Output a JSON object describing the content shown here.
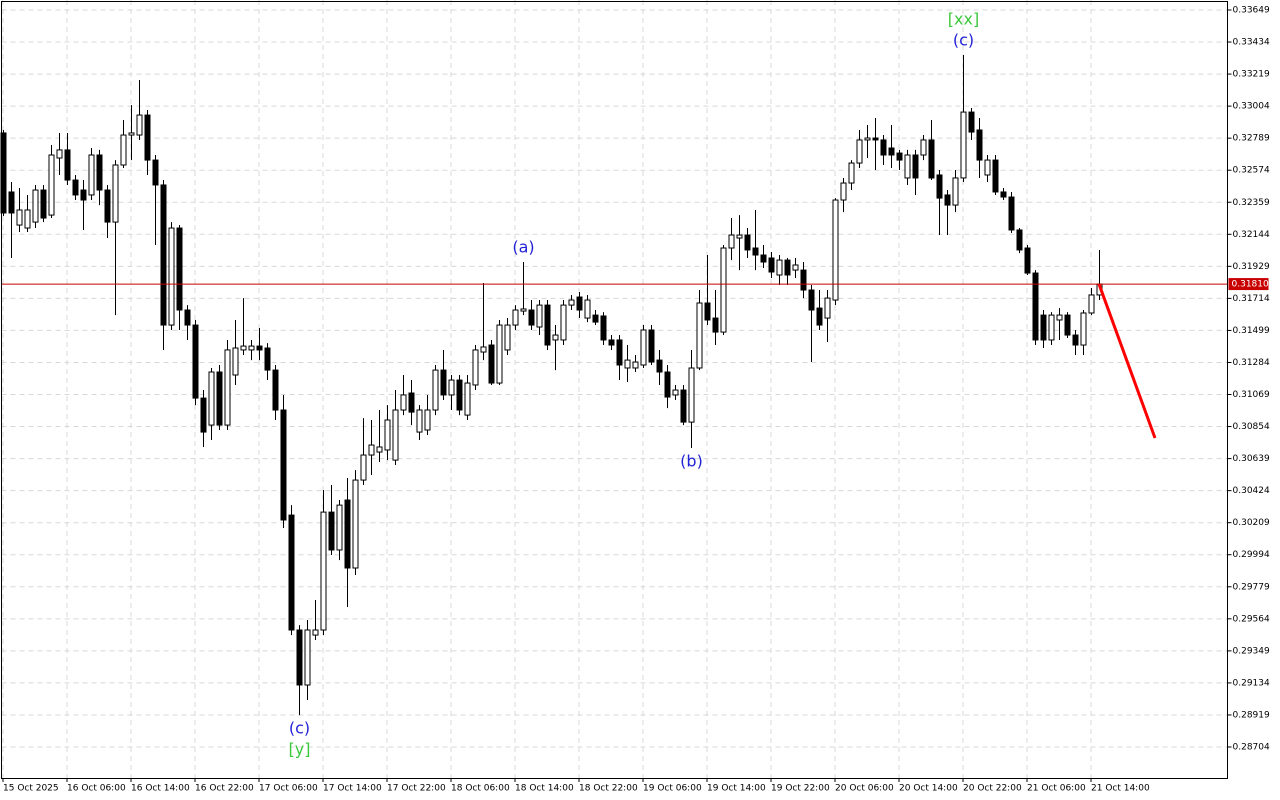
{
  "chart_data": {
    "type": "candlestick",
    "categories": [
      "15 Oct 2025",
      null,
      null,
      null,
      null,
      null,
      null,
      null,
      "16 Oct 06:00",
      null,
      null,
      null,
      null,
      null,
      null,
      null,
      "16 Oct 14:00",
      null,
      null,
      null,
      null,
      null,
      null,
      null,
      "16 Oct 22:00",
      null,
      null,
      null,
      null,
      null,
      null,
      null,
      "17 Oct 06:00",
      null,
      null,
      null,
      null,
      null,
      null,
      null,
      "17 Oct 14:00",
      null,
      null,
      null,
      null,
      null,
      null,
      null,
      "17 Oct 22:00",
      null,
      null,
      null,
      null,
      null,
      null,
      null,
      "18 Oct 06:00",
      null,
      null,
      null,
      null,
      null,
      null,
      null,
      "18 Oct 14:00",
      null,
      null,
      null,
      null,
      null,
      null,
      null,
      "18 Oct 22:00",
      null,
      null,
      null,
      null,
      null,
      null,
      null,
      "19 Oct 06:00",
      null,
      null,
      null,
      null,
      null,
      null,
      null,
      "19 Oct 14:00",
      null,
      null,
      null,
      null,
      null,
      null,
      null,
      "19 Oct 22:00",
      null,
      null,
      null,
      null,
      null,
      null,
      null,
      "20 Oct 06:00",
      null,
      null,
      null,
      null,
      null,
      null,
      null,
      "20 Oct 14:00",
      null,
      null,
      null,
      null,
      null,
      null,
      null,
      "20 Oct 22:00",
      null,
      null,
      null,
      null,
      null,
      null,
      null,
      "21 Oct 06:00",
      null,
      null,
      null,
      null,
      null,
      null,
      null,
      "21 Oct 14:00",
      null,
      null,
      null,
      null,
      null,
      null,
      null,
      null
    ],
    "open": [
      0.32824,
      0.32428,
      0.32206,
      0.32186,
      0.32226,
      0.32441,
      0.32273,
      0.32656,
      0.3271,
      0.32508,
      0.32441,
      0.32408,
      0.32676,
      0.32441,
      0.32226,
      0.32609,
      0.3281,
      0.3281,
      0.32944,
      0.32642,
      0.32475,
      0.31535,
      0.32186,
      0.31636,
      0.31535,
      0.31045,
      0.30864,
      0.3122,
      0.30864,
      0.312,
      0.31368,
      0.31368,
      0.31394,
      0.31381,
      0.31233,
      0.30965,
      0.3026,
      0.29489,
      0.2912,
      0.29455,
      0.29489,
      0.3028,
      0.30026,
      0.30361,
      0.29905,
      0.30495,
      0.30663,
      0.30683,
      0.30697,
      0.30629,
      0.30965,
      0.31079,
      0.30817,
      0.30831,
      0.30965,
      0.31233,
      0.31066,
      0.31166,
      0.30931,
      0.31133,
      0.31354,
      0.31401,
      0.31146,
      0.31368,
      0.31535,
      0.31629,
      0.31636,
      0.31522,
      0.31669,
      0.31435,
      0.31435,
      0.31669,
      0.31723,
      0.31582,
      0.31602,
      0.31596,
      0.31435,
      0.31435,
      0.31247,
      0.31247,
      0.31267,
      0.31502,
      0.313,
      0.3122,
      0.31066,
      0.31099,
      0.30884,
      0.31247,
      0.31683,
      0.31582,
      0.31488,
      0.32052,
      0.32119,
      0.32139,
      0.32052,
      0.32005,
      0.31985,
      0.31871,
      0.31971,
      0.31904,
      0.31904,
      0.3177,
      0.31649,
      0.31582,
      0.31703,
      0.32374,
      0.32488,
      0.32622,
      0.32777,
      0.3279,
      0.32777,
      0.32723,
      0.32689,
      0.32522,
      0.32676,
      0.32676,
      0.32777,
      0.32542,
      0.32408,
      0.3234,
      0.32522,
      0.32964,
      0.32844,
      0.32542,
      0.32642,
      0.32428,
      0.32394,
      0.32173,
      0.32052,
      0.31884,
      0.31602,
      0.31435,
      0.31569,
      0.31602,
      0.31468,
      0.31401,
      0.31616,
      0.31737,
      null,
      null,
      null,
      null,
      null,
      null,
      null
    ],
    "high": [
      0.32844,
      0.32495,
      0.32455,
      0.32408,
      0.32475,
      0.32475,
      0.32743,
      0.32824,
      0.32824,
      0.32542,
      0.32508,
      0.32723,
      0.3271,
      0.32475,
      0.32642,
      0.32911,
      0.33011,
      0.33179,
      0.32978,
      0.32676,
      0.32508,
      0.32226,
      0.32206,
      0.31669,
      0.31569,
      0.31099,
      0.31247,
      0.31267,
      0.31435,
      0.31569,
      0.31716,
      0.31435,
      0.31515,
      0.31414,
      0.31267,
      0.31066,
      0.30327,
      0.29522,
      0.29556,
      0.2969,
      0.30428,
      0.30462,
      0.30361,
      0.30509,
      0.30562,
      0.30911,
      0.30898,
      0.30965,
      0.30998,
      0.31099,
      0.312,
      0.31166,
      0.30998,
      0.31066,
      0.31267,
      0.31368,
      0.312,
      0.312,
      0.312,
      0.31401,
      0.31817,
      0.31435,
      0.31569,
      0.31582,
      0.31669,
      0.31958,
      0.31703,
      0.31703,
      0.31703,
      0.31535,
      0.31703,
      0.31737,
      0.31757,
      0.31737,
      0.31636,
      0.31622,
      0.31468,
      0.31468,
      0.31401,
      0.31334,
      0.31535,
      0.31535,
      0.31368,
      0.31267,
      0.31133,
      0.31133,
      0.31368,
      0.3177,
      0.32005,
      0.3177,
      0.32072,
      0.32253,
      0.32273,
      0.32186,
      0.32307,
      0.32072,
      0.32025,
      0.32005,
      0.31985,
      0.31985,
      0.31958,
      0.31804,
      0.3177,
      0.3177,
      0.32387,
      0.32522,
      0.32642,
      0.32844,
      0.32877,
      0.32924,
      0.3281,
      0.32877,
      0.3271,
      0.3271,
      0.3271,
      0.3281,
      0.32911,
      0.32575,
      0.32441,
      0.32575,
      0.33347,
      0.32991,
      0.32924,
      0.32676,
      0.32676,
      0.32455,
      0.32428,
      0.32186,
      0.32072,
      0.31904,
      0.31636,
      0.31622,
      0.31649,
      0.31622,
      0.31502,
      0.31636,
      0.31784,
      0.32039,
      null,
      null,
      null,
      null,
      null,
      null,
      null
    ],
    "low": [
      0.32267,
      0.31985,
      0.32159,
      0.32159,
      0.32186,
      0.32226,
      0.32253,
      0.32542,
      0.32475,
      0.32374,
      0.32173,
      0.32374,
      0.3234,
      0.32119,
      0.31602,
      0.32589,
      0.32642,
      0.32777,
      0.32542,
      0.32072,
      0.31368,
      0.31502,
      0.31502,
      0.31435,
      0.30998,
      0.30717,
      0.30764,
      0.30831,
      0.30831,
      0.31133,
      0.31334,
      0.313,
      0.313,
      0.31166,
      0.30898,
      0.30173,
      0.29455,
      0.28918,
      0.29019,
      0.29422,
      0.29455,
      0.29992,
      0.29958,
      0.29643,
      0.29858,
      0.30462,
      0.30529,
      0.30616,
      0.30629,
      0.30596,
      0.30931,
      0.30864,
      0.30764,
      0.30797,
      0.30931,
      0.31032,
      0.30965,
      0.30931,
      0.30898,
      0.31099,
      0.313,
      0.31133,
      0.31133,
      0.31334,
      0.31502,
      0.31602,
      0.31502,
      0.31468,
      0.31368,
      0.31233,
      0.31401,
      0.31636,
      0.31582,
      0.31555,
      0.31535,
      0.31401,
      0.31368,
      0.31166,
      0.31153,
      0.3122,
      0.31247,
      0.31267,
      0.31133,
      0.30978,
      0.31032,
      0.30864,
      0.3071,
      0.31233,
      0.31535,
      0.31401,
      0.31468,
      0.31971,
      0.31904,
      0.31985,
      0.31904,
      0.31918,
      0.31851,
      0.31804,
      0.31804,
      0.31851,
      0.31716,
      0.31287,
      0.31502,
      0.31421,
      0.31669,
      0.32293,
      0.32441,
      0.32589,
      0.32656,
      0.32575,
      0.32609,
      0.32589,
      0.32575,
      0.32475,
      0.32408,
      0.32642,
      0.32508,
      0.32139,
      0.32139,
      0.32293,
      0.32495,
      0.32777,
      0.32522,
      0.32495,
      0.32408,
      0.32374,
      0.32153,
      0.32018,
      0.31871,
      0.31401,
      0.31381,
      0.31401,
      0.31435,
      0.31448,
      0.31334,
      0.31334,
      0.31602,
      0.31703,
      null,
      null,
      null,
      null,
      null,
      null,
      null
    ],
    "close": [
      0.32287,
      0.32287,
      0.32307,
      0.32307,
      0.32441,
      0.32253,
      0.32676,
      0.3271,
      0.32508,
      0.32408,
      0.32374,
      0.32676,
      0.32441,
      0.32226,
      0.32609,
      0.3281,
      0.32824,
      0.32944,
      0.32642,
      0.32475,
      0.31535,
      0.32186,
      0.31636,
      0.31535,
      0.31045,
      0.30817,
      0.3122,
      0.30864,
      0.31368,
      0.31381,
      0.31394,
      0.31394,
      0.31368,
      0.31233,
      0.30965,
      0.30227,
      0.29489,
      0.2912,
      0.29489,
      0.29489,
      0.3028,
      0.30026,
      0.30327,
      0.29905,
      0.30495,
      0.30663,
      0.3073,
      0.30717,
      0.30898,
      0.30965,
      0.31066,
      0.30951,
      0.30965,
      0.30965,
      0.31233,
      0.31066,
      0.31166,
      0.30965,
      0.31146,
      0.31368,
      0.31388,
      0.31146,
      0.31535,
      0.31535,
      0.31636,
      0.31643,
      0.31535,
      0.31669,
      0.31401,
      0.31468,
      0.31669,
      0.31703,
      0.31636,
      0.31703,
      0.31555,
      0.31435,
      0.31401,
      0.31267,
      0.313,
      0.31287,
      0.31502,
      0.31287,
      0.3122,
      0.31052,
      0.31099,
      0.30884,
      0.31247,
      0.31683,
      0.31569,
      0.31488,
      0.32052,
      0.32139,
      0.32139,
      0.32039,
      0.32005,
      0.31958,
      0.31891,
      0.31971,
      0.31871,
      0.31938,
      0.3177,
      0.31636,
      0.31535,
      0.31716,
      0.32374,
      0.32488,
      0.32622,
      0.32777,
      0.3279,
      0.32777,
      0.32676,
      0.32676,
      0.32642,
      0.32676,
      0.32522,
      0.32777,
      0.32522,
      0.32387,
      0.3234,
      0.32522,
      0.32964,
      0.3283,
      0.32642,
      0.32642,
      0.32428,
      0.32394,
      0.32173,
      0.32039,
      0.31884,
      0.31435,
      0.31435,
      0.31602,
      0.31602,
      0.31468,
      0.31401,
      0.31616,
      0.31737,
      0.3181,
      null,
      null,
      null,
      null,
      null,
      null,
      null
    ],
    "ylim": [
      0.28496,
      0.33716
    ],
    "yticks": [
      0.33649,
      0.33434,
      0.33219,
      0.33004,
      0.32789,
      0.32574,
      0.32359,
      0.32144,
      0.31929,
      0.31714,
      0.31499,
      0.31284,
      0.31069,
      0.30854,
      0.30639,
      0.30424,
      0.30209,
      0.29994,
      0.29779,
      0.29564,
      0.29349,
      0.29134,
      0.28919,
      0.28704
    ],
    "grid": true,
    "bull_color": "#ffffff",
    "bear_color": "#000000",
    "last_price": {
      "value": 0.3181,
      "label": "0.31810",
      "color": "#c80000"
    },
    "forecast": {
      "color": "#ff0000",
      "values": [
        null,
        null,
        null,
        null,
        null,
        null,
        null,
        null,
        null,
        null,
        null,
        null,
        null,
        null,
        null,
        null,
        null,
        null,
        null,
        null,
        null,
        null,
        null,
        null,
        null,
        null,
        null,
        null,
        null,
        null,
        null,
        null,
        null,
        null,
        null,
        null,
        null,
        null,
        null,
        null,
        null,
        null,
        null,
        null,
        null,
        null,
        null,
        null,
        null,
        null,
        null,
        null,
        null,
        null,
        null,
        null,
        null,
        null,
        null,
        null,
        null,
        null,
        null,
        null,
        null,
        null,
        null,
        null,
        null,
        null,
        null,
        null,
        null,
        null,
        null,
        null,
        null,
        null,
        null,
        null,
        null,
        null,
        null,
        null,
        null,
        null,
        null,
        null,
        null,
        null,
        null,
        null,
        null,
        null,
        null,
        null,
        null,
        null,
        null,
        null,
        null,
        null,
        null,
        null,
        null,
        null,
        null,
        null,
        null,
        null,
        null,
        null,
        null,
        null,
        null,
        null,
        null,
        null,
        null,
        null,
        null,
        null,
        null,
        null,
        null,
        null,
        null,
        null,
        null,
        null,
        null,
        null,
        null,
        null,
        null,
        null,
        null,
        0.3181,
        null,
        null,
        null,
        null,
        null,
        null,
        0.30777
      ]
    },
    "annotations": [
      {
        "index": 37,
        "position": "below",
        "labels": [
          {
            "text": "(c)",
            "color": "#2323d6"
          },
          {
            "text": "[y]",
            "color": "#3cc83c"
          }
        ]
      },
      {
        "index": 65,
        "position": "above",
        "labels": [
          {
            "text": "(a)",
            "color": "#2323d6"
          }
        ]
      },
      {
        "index": 86,
        "position": "below",
        "labels": [
          {
            "text": "(b)",
            "color": "#2323d6"
          }
        ]
      },
      {
        "index": 120,
        "position": "above",
        "labels": [
          {
            "text": "(c)",
            "color": "#2323d6"
          },
          {
            "text": "[xx]",
            "color": "#3cc83c"
          }
        ]
      }
    ]
  }
}
